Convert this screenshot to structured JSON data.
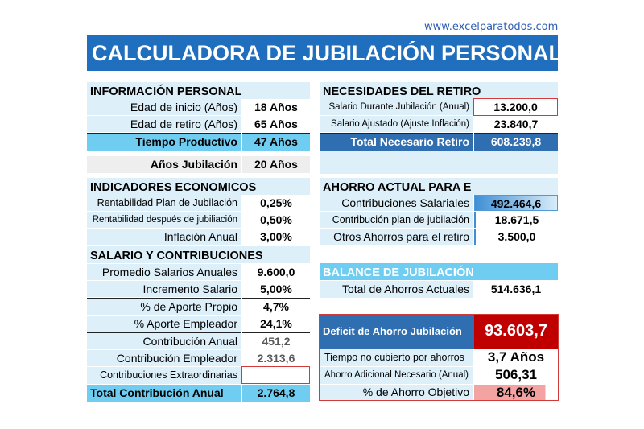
{
  "link": "www.excelparatodos.com",
  "title": "CALCULADORA DE JUBILACIÓN PERSONAL",
  "info_personal": {
    "header": "INFORMACIÓN PERSONAL",
    "edad_inicio_label": "Edad de inicio (Años)",
    "edad_inicio_value": "18 Años",
    "edad_retiro_label": "Edad de retiro (Años)",
    "edad_retiro_value": "65 Años",
    "tiempo_label": "Tiempo Productivo",
    "tiempo_value": "47 Años",
    "jubilacion_label": "Años Jubilación",
    "jubilacion_value": "20 Años"
  },
  "indicadores": {
    "header": "INDICADORES ECONOMICOS",
    "rent_plan_label": "Rentabilidad Plan de Jubilación",
    "rent_plan_value": "0,25%",
    "rent_despues_label": "Rentabilidad después de jubiliación",
    "rent_despues_value": "0,50%",
    "inflacion_label": "Inflación Anual",
    "inflacion_value": "3,00%"
  },
  "salario": {
    "header": "SALARIO Y CONTRIBUCIONES",
    "promedio_label": "Promedio Salarios Anuales",
    "promedio_value": "9.600,0",
    "incremento_label": "Incremento Salario",
    "incremento_value": "5,00%",
    "aporte_propio_label": "% de Aporte Propio",
    "aporte_propio_value": "4,7%",
    "aporte_empleador_label": "% Aporte Empleador",
    "aporte_empleador_value": "24,1%",
    "contribucion_anual_label": "Contribución Anual",
    "contribucion_anual_value": "451,2",
    "contribucion_empleador_label": "Contribución Empleador",
    "contribucion_empleador_value": "2.313,6",
    "extraordinarias_label": "Contribuciones Extraordinarias",
    "extraordinarias_value": "",
    "total_label": "Total Contribución Anual",
    "total_value": "2.764,8"
  },
  "necesidades": {
    "header": "NECESIDADES DEL RETIRO",
    "salario_durante_label": "Salario Durante Jubilación (Anual)",
    "salario_durante_value": "13.200,0",
    "salario_ajustado_label": "Salario Ajustado (Ajuste Inflación)",
    "salario_ajustado_value": "23.840,7",
    "total_label": "Total Necesario Retiro",
    "total_value": "608.239,8"
  },
  "ahorro_actual": {
    "header": "AHORRO ACTUAL PARA E",
    "salariales_label": "Contribuciones Salariales",
    "salariales_value": "492.464,6",
    "plan_label": "Contribución plan de jubilación",
    "plan_value": "18.671,5",
    "otros_label": "Otros Ahorros para el retiro",
    "otros_value": "3.500,0"
  },
  "balance": {
    "header": "BALANCE DE JUBILACIÓN",
    "total_label": "Total de Ahorros Actuales",
    "total_value": "514.636,1",
    "deficit_label": "Deficit de Ahorro Jubilación",
    "deficit_value": "93.603,7",
    "tiempo_label": "Tiempo no cubierto por ahorros",
    "tiempo_value": "3,7 Años",
    "adicional_label": "Ahorro Adicional Necesario (Anual)",
    "adicional_value": "506,31",
    "objetivo_label": "% de Ahorro Objetivo",
    "objetivo_value": "84,6%"
  },
  "colors": {
    "title_bg": "#1f6fbe",
    "section_bg": "#ddf0fa",
    "highlight": "#70cdf2",
    "deficit_red": "#c00000"
  }
}
